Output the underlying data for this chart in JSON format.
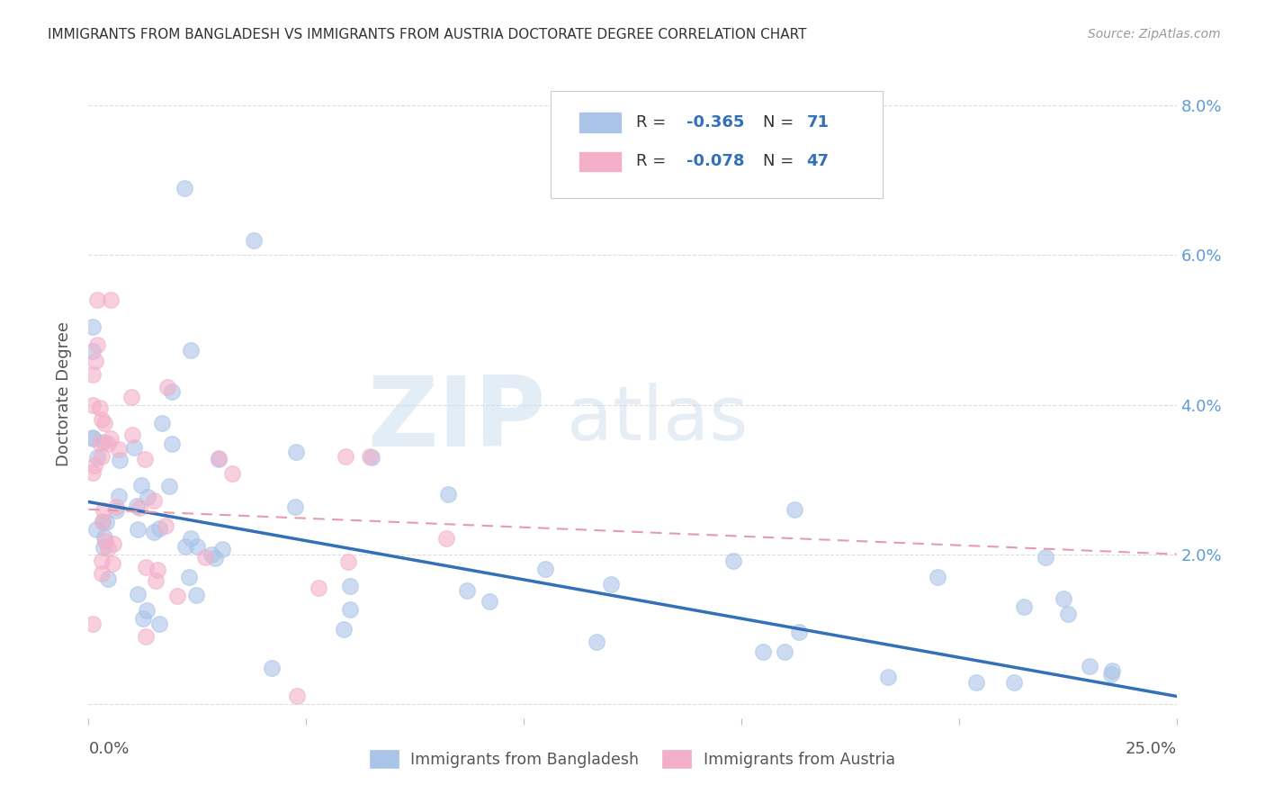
{
  "title": "IMMIGRANTS FROM BANGLADESH VS IMMIGRANTS FROM AUSTRIA DOCTORATE DEGREE CORRELATION CHART",
  "source": "Source: ZipAtlas.com",
  "ylabel": "Doctorate Degree",
  "watermark_zip": "ZIP",
  "watermark_atlas": "atlas",
  "bg_color": "#ffffff",
  "grid_color": "#dddddd",
  "bangladesh_color": "#aac4e8",
  "austria_color": "#f4afc8",
  "trend_bangladesh_color": "#3370b8",
  "trend_austria_color": "#e89ab0",
  "xlim": [
    0.0,
    0.25
  ],
  "ylim": [
    -0.002,
    0.085
  ],
  "right_ytick_labels": [
    "",
    "2.0%",
    "4.0%",
    "6.0%",
    "8.0%"
  ],
  "right_ytick_values": [
    0.0,
    0.02,
    0.04,
    0.06,
    0.08
  ],
  "legend_r1": "R = -0.365",
  "legend_n1": "N = 71",
  "legend_r2": "R = -0.078",
  "legend_n2": "N = 47",
  "legend_text_color": "#3370b8",
  "legend_label_color": "#333333",
  "trend_bang_x0": 0.0,
  "trend_bang_x1": 0.25,
  "trend_bang_y0": 0.027,
  "trend_bang_y1": 0.001,
  "trend_aust_x0": 0.0,
  "trend_aust_x1": 0.25,
  "trend_aust_y0": 0.026,
  "trend_aust_y1": 0.02
}
